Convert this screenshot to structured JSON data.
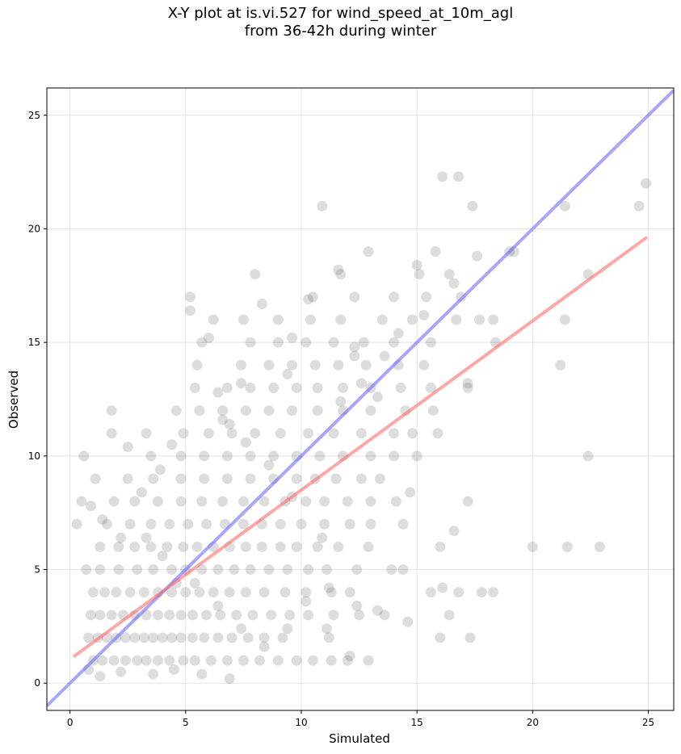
{
  "chart_data": {
    "type": "scatter",
    "title_line1": "X-Y plot at is.vi.527 for wind_speed_at_10m_agl",
    "title_line2": "from 36-42h during winter",
    "xlabel": "Simulated",
    "ylabel": "Observed",
    "xlim": [
      -1.0,
      26.1
    ],
    "ylim": [
      -1.2,
      26.2
    ],
    "x_ticks": [
      0,
      5,
      10,
      15,
      20,
      25
    ],
    "y_ticks": [
      0,
      5,
      10,
      15,
      20,
      25
    ],
    "grid": true,
    "colors": {
      "points": "#555555",
      "identity_line": "#6b6bff",
      "fit_line": "#ff6b6b"
    },
    "identity_line": {
      "x": [
        -1.0,
        26.1
      ],
      "y": [
        -1.0,
        26.1
      ]
    },
    "fit_line": {
      "x": [
        0.2,
        24.9
      ],
      "y": [
        1.2,
        19.6
      ]
    },
    "points": [
      [
        1.0,
        1
      ],
      [
        1.4,
        1
      ],
      [
        1.9,
        1
      ],
      [
        2.4,
        1
      ],
      [
        2.9,
        1
      ],
      [
        3.3,
        1
      ],
      [
        3.8,
        1
      ],
      [
        4.3,
        1
      ],
      [
        4.9,
        1
      ],
      [
        5.4,
        1
      ],
      [
        6.1,
        1
      ],
      [
        6.8,
        1
      ],
      [
        7.5,
        1
      ],
      [
        8.2,
        1
      ],
      [
        9.0,
        1
      ],
      [
        9.8,
        1
      ],
      [
        10.5,
        1
      ],
      [
        11.3,
        1
      ],
      [
        12.0,
        1
      ],
      [
        12.9,
        1
      ],
      [
        0.8,
        2
      ],
      [
        1.2,
        2
      ],
      [
        1.6,
        2
      ],
      [
        2.0,
        2
      ],
      [
        2.4,
        2
      ],
      [
        2.8,
        2
      ],
      [
        3.2,
        2
      ],
      [
        3.6,
        2
      ],
      [
        4.0,
        2
      ],
      [
        4.4,
        2
      ],
      [
        4.8,
        2
      ],
      [
        5.3,
        2
      ],
      [
        5.8,
        2
      ],
      [
        6.4,
        2
      ],
      [
        7.0,
        2
      ],
      [
        7.7,
        2
      ],
      [
        8.4,
        2
      ],
      [
        9.2,
        2
      ],
      [
        11.2,
        2
      ],
      [
        16.0,
        2
      ],
      [
        17.3,
        2
      ],
      [
        0.9,
        3
      ],
      [
        1.3,
        3
      ],
      [
        1.8,
        3
      ],
      [
        2.3,
        3
      ],
      [
        2.8,
        3
      ],
      [
        3.3,
        3
      ],
      [
        3.8,
        3
      ],
      [
        4.3,
        3
      ],
      [
        4.8,
        3
      ],
      [
        5.3,
        3
      ],
      [
        5.9,
        3
      ],
      [
        6.5,
        3
      ],
      [
        7.2,
        3
      ],
      [
        7.9,
        3
      ],
      [
        8.7,
        3
      ],
      [
        9.5,
        3
      ],
      [
        10.3,
        3
      ],
      [
        11.4,
        3
      ],
      [
        12.5,
        3
      ],
      [
        16.4,
        3
      ],
      [
        1.0,
        4
      ],
      [
        1.5,
        4
      ],
      [
        2.0,
        4
      ],
      [
        2.6,
        4
      ],
      [
        3.2,
        4
      ],
      [
        3.8,
        4
      ],
      [
        4.4,
        4
      ],
      [
        5.0,
        4
      ],
      [
        5.6,
        4
      ],
      [
        6.2,
        4
      ],
      [
        6.9,
        4
      ],
      [
        7.6,
        4
      ],
      [
        8.4,
        4
      ],
      [
        9.3,
        4
      ],
      [
        10.2,
        4
      ],
      [
        11.3,
        4
      ],
      [
        12.1,
        4
      ],
      [
        15.6,
        4
      ],
      [
        18.3,
        4
      ],
      [
        0.7,
        5
      ],
      [
        1.3,
        5
      ],
      [
        2.1,
        5
      ],
      [
        2.9,
        5
      ],
      [
        3.6,
        5
      ],
      [
        4.4,
        5
      ],
      [
        5.0,
        5
      ],
      [
        5.7,
        5
      ],
      [
        6.4,
        5
      ],
      [
        7.1,
        5
      ],
      [
        7.8,
        5
      ],
      [
        8.6,
        5
      ],
      [
        9.4,
        5
      ],
      [
        10.3,
        5
      ],
      [
        11.1,
        5
      ],
      [
        12.4,
        5
      ],
      [
        13.9,
        5
      ],
      [
        1.3,
        6
      ],
      [
        2.1,
        6
      ],
      [
        2.8,
        6
      ],
      [
        3.5,
        6
      ],
      [
        4.2,
        6
      ],
      [
        4.9,
        6
      ],
      [
        5.5,
        6
      ],
      [
        6.2,
        6
      ],
      [
        6.9,
        6
      ],
      [
        7.6,
        6
      ],
      [
        8.3,
        6
      ],
      [
        9.1,
        6
      ],
      [
        9.8,
        6
      ],
      [
        10.7,
        6
      ],
      [
        11.6,
        6
      ],
      [
        12.9,
        6
      ],
      [
        16.0,
        6
      ],
      [
        20.0,
        6
      ],
      [
        21.5,
        6
      ],
      [
        22.9,
        6
      ],
      [
        0.3,
        7
      ],
      [
        1.6,
        7
      ],
      [
        2.6,
        7
      ],
      [
        3.5,
        7
      ],
      [
        4.3,
        7
      ],
      [
        5.1,
        7
      ],
      [
        5.9,
        7
      ],
      [
        6.7,
        7
      ],
      [
        7.5,
        7
      ],
      [
        8.3,
        7
      ],
      [
        9.1,
        7
      ],
      [
        10.0,
        7
      ],
      [
        11.0,
        7
      ],
      [
        12.1,
        7
      ],
      [
        13.0,
        7
      ],
      [
        14.4,
        7
      ],
      [
        0.5,
        8
      ],
      [
        1.9,
        8
      ],
      [
        2.8,
        8
      ],
      [
        3.8,
        8
      ],
      [
        4.8,
        8
      ],
      [
        5.7,
        8
      ],
      [
        6.6,
        8
      ],
      [
        7.5,
        8
      ],
      [
        8.4,
        8
      ],
      [
        9.3,
        8
      ],
      [
        10.2,
        8
      ],
      [
        11.0,
        8
      ],
      [
        12.0,
        8
      ],
      [
        13.0,
        8
      ],
      [
        14.1,
        8
      ],
      [
        17.2,
        8
      ],
      [
        1.1,
        9
      ],
      [
        2.5,
        9
      ],
      [
        3.6,
        9
      ],
      [
        4.8,
        9
      ],
      [
        5.8,
        9
      ],
      [
        6.8,
        9
      ],
      [
        7.8,
        9
      ],
      [
        8.8,
        9
      ],
      [
        9.8,
        9
      ],
      [
        10.6,
        9
      ],
      [
        11.5,
        9
      ],
      [
        12.6,
        9
      ],
      [
        13.4,
        9
      ],
      [
        0.6,
        10
      ],
      [
        3.5,
        10
      ],
      [
        4.8,
        10
      ],
      [
        5.8,
        10
      ],
      [
        6.8,
        10
      ],
      [
        7.8,
        10
      ],
      [
        8.8,
        10
      ],
      [
        9.8,
        10
      ],
      [
        10.8,
        10
      ],
      [
        11.8,
        10
      ],
      [
        13.0,
        10
      ],
      [
        14.0,
        10
      ],
      [
        15.0,
        10
      ],
      [
        22.4,
        10
      ],
      [
        1.8,
        11
      ],
      [
        3.3,
        11
      ],
      [
        4.9,
        11
      ],
      [
        6.0,
        11
      ],
      [
        7.0,
        11
      ],
      [
        8.0,
        11
      ],
      [
        9.1,
        11
      ],
      [
        10.3,
        11
      ],
      [
        11.4,
        11
      ],
      [
        12.6,
        11
      ],
      [
        14.0,
        11
      ],
      [
        14.8,
        11
      ],
      [
        1.8,
        12
      ],
      [
        4.6,
        12
      ],
      [
        5.6,
        12
      ],
      [
        6.6,
        12
      ],
      [
        7.6,
        12
      ],
      [
        8.6,
        12
      ],
      [
        9.6,
        12
      ],
      [
        10.7,
        12
      ],
      [
        11.8,
        12
      ],
      [
        13.0,
        12
      ],
      [
        14.5,
        12
      ],
      [
        15.7,
        12
      ],
      [
        5.4,
        13
      ],
      [
        6.8,
        13
      ],
      [
        7.8,
        13
      ],
      [
        8.8,
        13
      ],
      [
        9.8,
        13
      ],
      [
        10.7,
        13
      ],
      [
        11.8,
        13
      ],
      [
        13.0,
        13
      ],
      [
        14.3,
        13
      ],
      [
        15.6,
        13
      ],
      [
        17.2,
        13
      ],
      [
        5.5,
        14
      ],
      [
        7.4,
        14
      ],
      [
        8.6,
        14
      ],
      [
        9.6,
        14
      ],
      [
        10.6,
        14
      ],
      [
        11.6,
        14
      ],
      [
        12.8,
        14
      ],
      [
        14.2,
        14
      ],
      [
        15.3,
        14
      ],
      [
        21.2,
        14
      ],
      [
        5.7,
        15
      ],
      [
        7.8,
        15
      ],
      [
        9.0,
        15
      ],
      [
        10.2,
        15
      ],
      [
        11.4,
        15
      ],
      [
        12.7,
        15
      ],
      [
        14.0,
        15
      ],
      [
        15.6,
        15
      ],
      [
        18.4,
        15
      ],
      [
        6.2,
        16
      ],
      [
        7.5,
        16
      ],
      [
        9.0,
        16
      ],
      [
        10.4,
        16
      ],
      [
        11.7,
        16
      ],
      [
        13.5,
        16
      ],
      [
        14.8,
        16
      ],
      [
        16.7,
        16
      ],
      [
        17.7,
        16
      ],
      [
        21.4,
        16
      ],
      [
        5.2,
        17
      ],
      [
        10.5,
        17
      ],
      [
        12.3,
        17
      ],
      [
        14.0,
        17
      ],
      [
        15.4,
        17
      ],
      [
        16.9,
        17
      ],
      [
        8.0,
        18
      ],
      [
        11.7,
        18
      ],
      [
        15.1,
        18
      ],
      [
        16.4,
        18
      ],
      [
        22.4,
        18
      ],
      [
        12.9,
        19
      ],
      [
        15.8,
        19
      ],
      [
        19.0,
        19
      ],
      [
        10.9,
        21
      ],
      [
        17.4,
        21
      ],
      [
        21.4,
        21
      ],
      [
        24.6,
        21
      ],
      [
        16.1,
        22.3
      ],
      [
        16.8,
        22.3
      ],
      [
        24.9,
        22
      ],
      [
        2.5,
        10.4
      ],
      [
        3.1,
        8.4
      ],
      [
        3.9,
        9.4
      ],
      [
        4.4,
        10.5
      ],
      [
        5.2,
        16.4
      ],
      [
        6.0,
        15.2
      ],
      [
        6.9,
        11.4
      ],
      [
        8.3,
        16.7
      ],
      [
        9.6,
        15.2
      ],
      [
        10.3,
        16.9
      ],
      [
        11.6,
        18.2
      ],
      [
        12.3,
        14.8
      ],
      [
        13.3,
        12.6
      ],
      [
        14.7,
        8.4
      ],
      [
        15.9,
        11.0
      ],
      [
        16.6,
        6.7
      ],
      [
        17.8,
        4.0
      ],
      [
        19.2,
        19.0
      ],
      [
        14.6,
        2.7
      ],
      [
        13.3,
        3.2
      ],
      [
        12.1,
        1.2
      ],
      [
        11.1,
        2.4
      ],
      [
        2.2,
        0.5
      ],
      [
        1.3,
        0.3
      ],
      [
        0.8,
        0.6
      ],
      [
        3.6,
        0.4
      ],
      [
        6.9,
        0.2
      ],
      [
        4.5,
        0.6
      ],
      [
        5.7,
        0.4
      ],
      [
        16.8,
        4.0
      ],
      [
        16.1,
        4.2
      ],
      [
        17.2,
        13.2
      ],
      [
        18.3,
        16.0
      ],
      [
        15.0,
        18.4
      ],
      [
        12.3,
        14.4
      ],
      [
        9.4,
        13.6
      ],
      [
        7.4,
        13.2
      ],
      [
        6.4,
        12.8
      ],
      [
        0.9,
        7.8
      ],
      [
        1.4,
        7.2
      ],
      [
        2.2,
        6.4
      ],
      [
        3.3,
        6.4
      ],
      [
        4.0,
        5.6
      ],
      [
        4.6,
        4.4
      ],
      [
        5.4,
        4.4
      ],
      [
        6.4,
        3.4
      ],
      [
        7.4,
        2.4
      ],
      [
        8.4,
        1.6
      ],
      [
        9.4,
        2.4
      ],
      [
        10.2,
        3.6
      ],
      [
        11.2,
        4.2
      ],
      [
        12.4,
        3.4
      ],
      [
        13.6,
        3.0
      ],
      [
        14.4,
        5.0
      ],
      [
        10.9,
        6.4
      ],
      [
        9.6,
        8.2
      ],
      [
        8.6,
        9.6
      ],
      [
        7.6,
        10.6
      ],
      [
        6.6,
        11.6
      ],
      [
        11.7,
        12.4
      ],
      [
        12.6,
        13.2
      ],
      [
        13.6,
        14.4
      ],
      [
        14.2,
        15.4
      ],
      [
        15.3,
        16.2
      ],
      [
        16.6,
        17.6
      ],
      [
        17.6,
        18.8
      ]
    ]
  }
}
